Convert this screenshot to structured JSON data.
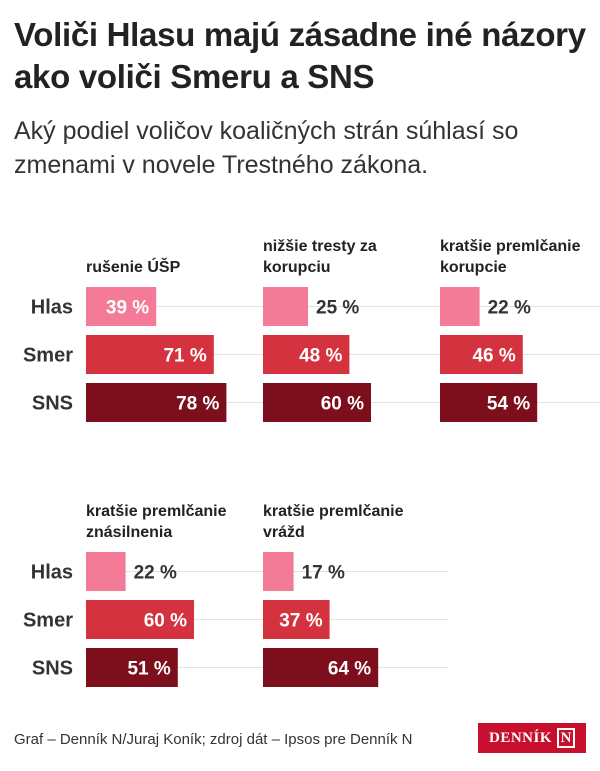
{
  "header": {
    "title": "Voliči Hlasu majú zásadne iné názory ako voliči Smeru a SNS",
    "subtitle": "Aký podiel voličov koaličných strán súhlasí so zmenami v novele Trestného zákona."
  },
  "colors": {
    "Hlas": "#f37b97",
    "Smer": "#d4323f",
    "SNS": "#7d0f1d",
    "gridline": "#e2e2e2"
  },
  "chart_data": [
    {
      "type": "bar",
      "title": "rušenie ÚŠP",
      "categories": [
        "Hlas",
        "Smer",
        "SNS"
      ],
      "values": [
        39,
        71,
        78
      ],
      "labels": [
        "39 %",
        "71 %",
        "78 %"
      ],
      "xlim": [
        0,
        100
      ]
    },
    {
      "type": "bar",
      "title": "nižšie tresty za korupciu",
      "categories": [
        "Hlas",
        "Smer",
        "SNS"
      ],
      "values": [
        25,
        48,
        60
      ],
      "labels": [
        "25 %",
        "48 %",
        "60 %"
      ],
      "xlim": [
        0,
        100
      ]
    },
    {
      "type": "bar",
      "title": "kratšie premlčanie korupcie",
      "categories": [
        "Hlas",
        "Smer",
        "SNS"
      ],
      "values": [
        22,
        46,
        54
      ],
      "labels": [
        "22 %",
        "46 %",
        "54 %"
      ],
      "xlim": [
        0,
        100
      ]
    },
    {
      "type": "bar",
      "title": "kratšie premlčanie znásilnenia",
      "categories": [
        "Hlas",
        "Smer",
        "SNS"
      ],
      "values": [
        22,
        60,
        51
      ],
      "labels": [
        "22 %",
        "60 %",
        "51 %"
      ],
      "xlim": [
        0,
        100
      ]
    },
    {
      "type": "bar",
      "title": "kratšie premlčanie vrážd",
      "categories": [
        "Hlas",
        "Smer",
        "SNS"
      ],
      "values": [
        17,
        37,
        64
      ],
      "labels": [
        "17 %",
        "37 %",
        "64 %"
      ],
      "xlim": [
        0,
        100
      ]
    }
  ],
  "footer": {
    "credit": "Graf – Denník N/Juraj Koník; zdroj dát – Ipsos pre Denník N",
    "logo_text": "DENNÍK",
    "logo_mark": "N"
  }
}
